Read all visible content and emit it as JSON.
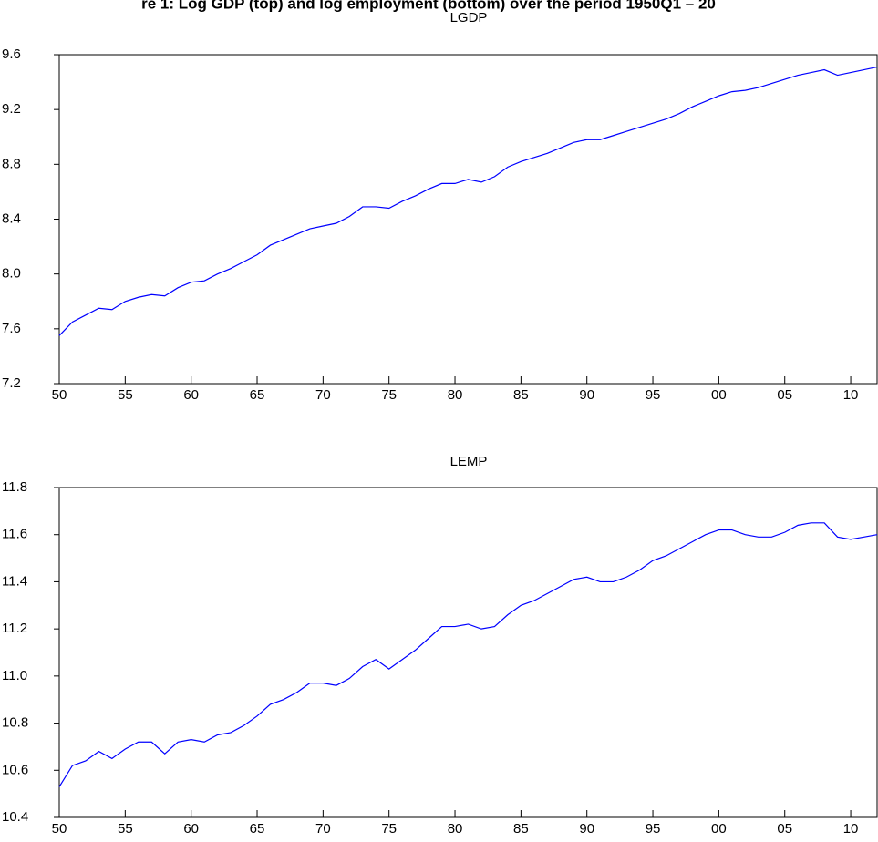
{
  "figure_caption": "re 1: Log GDP (top) and log employment (bottom) over the period 1950Q1 – 20",
  "chart_data": [
    {
      "type": "line",
      "title": "LGDP",
      "color": "#0000ff",
      "x": [
        1950,
        1951,
        1952,
        1953,
        1954,
        1955,
        1956,
        1957,
        1958,
        1959,
        1960,
        1961,
        1962,
        1963,
        1964,
        1965,
        1966,
        1967,
        1968,
        1969,
        1970,
        1971,
        1972,
        1973,
        1974,
        1975,
        1976,
        1977,
        1978,
        1979,
        1980,
        1981,
        1982,
        1983,
        1984,
        1985,
        1986,
        1987,
        1988,
        1989,
        1990,
        1991,
        1992,
        1993,
        1994,
        1995,
        1996,
        1997,
        1998,
        1999,
        2000,
        2001,
        2002,
        2003,
        2004,
        2005,
        2006,
        2007,
        2008,
        2009,
        2010,
        2011,
        2012
      ],
      "values": [
        7.55,
        7.65,
        7.7,
        7.75,
        7.74,
        7.8,
        7.83,
        7.85,
        7.84,
        7.9,
        7.94,
        7.95,
        8.0,
        8.04,
        8.09,
        8.14,
        8.21,
        8.25,
        8.29,
        8.33,
        8.35,
        8.37,
        8.42,
        8.49,
        8.49,
        8.48,
        8.53,
        8.57,
        8.62,
        8.66,
        8.66,
        8.69,
        8.67,
        8.71,
        8.78,
        8.82,
        8.85,
        8.88,
        8.92,
        8.96,
        8.98,
        8.98,
        9.01,
        9.04,
        9.07,
        9.1,
        9.13,
        9.17,
        9.22,
        9.26,
        9.3,
        9.33,
        9.34,
        9.36,
        9.39,
        9.42,
        9.45,
        9.47,
        9.49,
        9.45,
        9.47,
        9.49,
        9.51
      ],
      "xlim": [
        1950,
        2012
      ],
      "xticks": [
        {
          "value": 1950,
          "label": "50"
        },
        {
          "value": 1955,
          "label": "55"
        },
        {
          "value": 1960,
          "label": "60"
        },
        {
          "value": 1965,
          "label": "65"
        },
        {
          "value": 1970,
          "label": "70"
        },
        {
          "value": 1975,
          "label": "75"
        },
        {
          "value": 1980,
          "label": "80"
        },
        {
          "value": 1985,
          "label": "85"
        },
        {
          "value": 1990,
          "label": "90"
        },
        {
          "value": 1995,
          "label": "95"
        },
        {
          "value": 2000,
          "label": "00"
        },
        {
          "value": 2005,
          "label": "05"
        },
        {
          "value": 2010,
          "label": "10"
        }
      ],
      "ylim": [
        7.2,
        9.6
      ],
      "yticks": [
        7.2,
        7.6,
        {
          "value": 8.0,
          "label": "8.0"
        },
        8.4,
        8.8,
        9.2,
        9.6
      ]
    },
    {
      "type": "line",
      "title": "LEMP",
      "color": "#0000ff",
      "x": [
        1950,
        1951,
        1952,
        1953,
        1954,
        1955,
        1956,
        1957,
        1958,
        1959,
        1960,
        1961,
        1962,
        1963,
        1964,
        1965,
        1966,
        1967,
        1968,
        1969,
        1970,
        1971,
        1972,
        1973,
        1974,
        1975,
        1976,
        1977,
        1978,
        1979,
        1980,
        1981,
        1982,
        1983,
        1984,
        1985,
        1986,
        1987,
        1988,
        1989,
        1990,
        1991,
        1992,
        1993,
        1994,
        1995,
        1996,
        1997,
        1998,
        1999,
        2000,
        2001,
        2002,
        2003,
        2004,
        2005,
        2006,
        2007,
        2008,
        2009,
        2010,
        2011,
        2012
      ],
      "values": [
        10.53,
        10.62,
        10.64,
        10.68,
        10.65,
        10.69,
        10.72,
        10.72,
        10.67,
        10.72,
        10.73,
        10.72,
        10.75,
        10.76,
        10.79,
        10.83,
        10.88,
        10.9,
        10.93,
        10.97,
        10.97,
        10.96,
        10.99,
        11.04,
        11.07,
        11.03,
        11.07,
        11.11,
        11.16,
        11.21,
        11.21,
        11.22,
        11.2,
        11.21,
        11.26,
        11.3,
        11.32,
        11.35,
        11.38,
        11.41,
        11.42,
        11.4,
        11.4,
        11.42,
        11.45,
        11.49,
        11.51,
        11.54,
        11.57,
        11.6,
        11.62,
        11.62,
        11.6,
        11.59,
        11.59,
        11.61,
        11.64,
        11.65,
        11.65,
        11.59,
        11.58,
        11.59,
        11.6
      ],
      "xlim": [
        1950,
        2012
      ],
      "xticks": [
        {
          "value": 1950,
          "label": "50"
        },
        {
          "value": 1955,
          "label": "55"
        },
        {
          "value": 1960,
          "label": "60"
        },
        {
          "value": 1965,
          "label": "65"
        },
        {
          "value": 1970,
          "label": "70"
        },
        {
          "value": 1975,
          "label": "75"
        },
        {
          "value": 1980,
          "label": "80"
        },
        {
          "value": 1985,
          "label": "85"
        },
        {
          "value": 1990,
          "label": "90"
        },
        {
          "value": 1995,
          "label": "95"
        },
        {
          "value": 2000,
          "label": "00"
        },
        {
          "value": 2005,
          "label": "05"
        },
        {
          "value": 2010,
          "label": "10"
        }
      ],
      "ylim": [
        10.4,
        11.8
      ],
      "yticks": [
        10.4,
        10.6,
        10.8,
        {
          "value": 11.0,
          "label": "11.0"
        },
        11.2,
        11.4,
        11.6,
        11.8
      ]
    }
  ]
}
